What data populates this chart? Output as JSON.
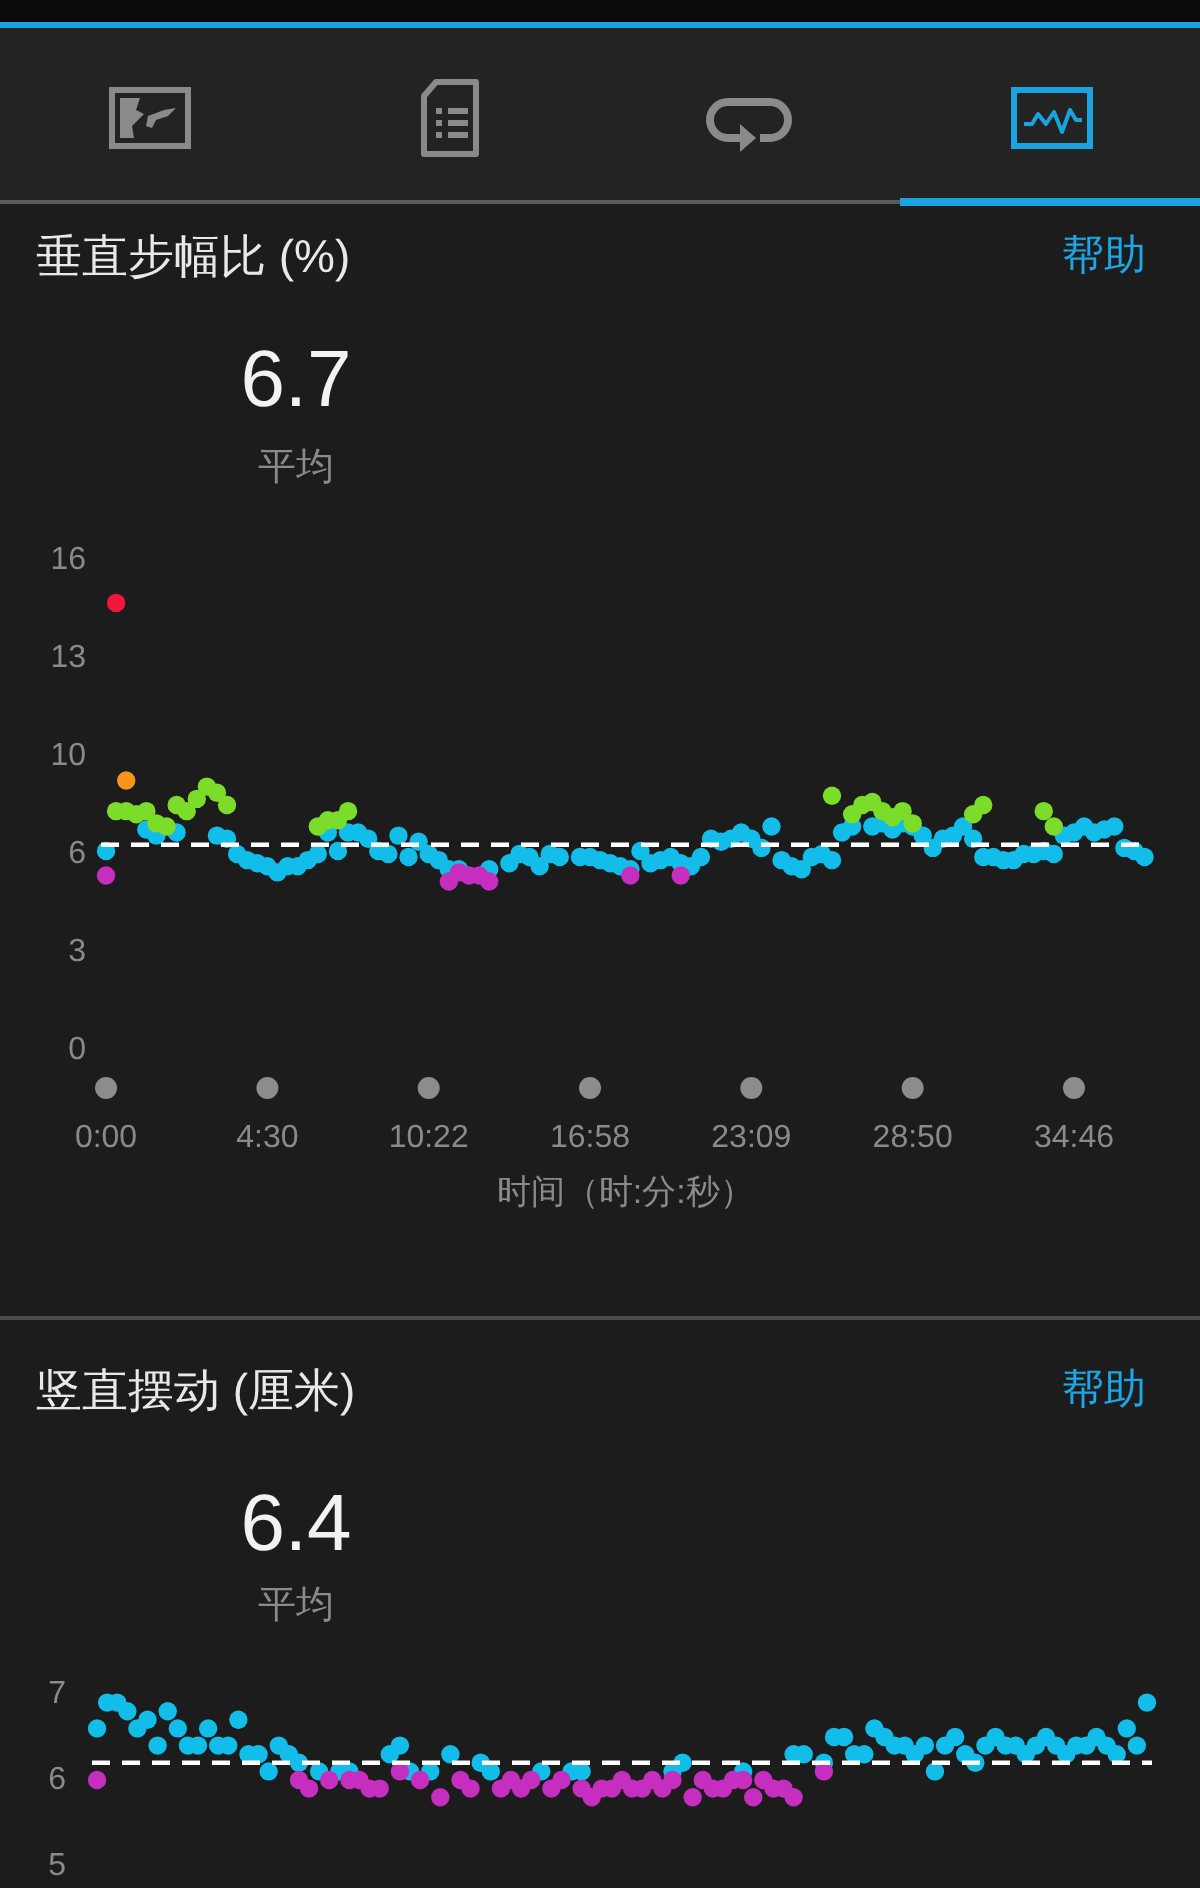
{
  "chart_data": [
    {
      "type": "scatter",
      "title": "垂直步幅比 (%)",
      "subtitle": "6.7",
      "annotations": [
        "平均",
        "帮助"
      ],
      "xlabel": "时间（时:分:秒）",
      "marker": "circle",
      "categories": [
        "0:00",
        null,
        null,
        null,
        null,
        null,
        null,
        null,
        null,
        null,
        null,
        null,
        null,
        null,
        null,
        null,
        "4:30",
        null,
        null,
        null,
        null,
        null,
        null,
        null,
        null,
        null,
        null,
        null,
        null,
        null,
        null,
        null,
        "10:22",
        null,
        null,
        null,
        null,
        null,
        null,
        null,
        null,
        null,
        null,
        null,
        null,
        null,
        null,
        null,
        "16:58",
        null,
        null,
        null,
        null,
        null,
        null,
        null,
        null,
        null,
        null,
        null,
        null,
        null,
        null,
        null,
        "23:09",
        null,
        null,
        null,
        null,
        null,
        null,
        null,
        null,
        null,
        null,
        null,
        null,
        null,
        null,
        null,
        "28:50",
        null,
        null,
        null,
        null,
        null,
        null,
        null,
        null,
        null,
        null,
        null,
        null,
        null,
        null,
        null,
        "34:46",
        null,
        null,
        null,
        null,
        null,
        null,
        null
      ],
      "ylim": [
        0,
        16
      ],
      "yticks": [
        0,
        {
          "value": 3.2,
          "label": "3"
        },
        {
          "value": 6.4,
          "label": "6"
        },
        {
          "value": 9.6,
          "label": "10"
        },
        {
          "value": 12.8,
          "label": "13"
        },
        16
      ],
      "ref_lines": [
        {
          "axis": "y",
          "value": 6.7,
          "color": "#ffffff",
          "line_style": "dashed"
        }
      ],
      "series": [
        {
          "color": "#13bde9",
          "values": [
            6.5,
            null,
            null,
            null,
            7.2,
            7.0,
            null,
            7.1,
            null,
            null,
            null,
            7.0,
            6.9,
            6.4,
            6.2,
            6.1,
            6.0,
            5.8,
            6.0,
            6.0,
            6.2,
            6.4,
            7.1,
            6.5,
            7.1,
            7.1,
            6.9,
            6.5,
            6.4,
            7.0,
            6.3,
            6.8,
            6.4,
            6.2,
            5.9,
            5.9,
            null,
            null,
            5.9,
            null,
            6.1,
            6.4,
            6.3,
            6.0,
            6.4,
            6.3,
            null,
            6.3,
            6.3,
            6.2,
            6.1,
            6.0,
            5.9,
            6.5,
            6.1,
            6.2,
            6.3,
            6.1,
            6.0,
            6.3,
            6.9,
            6.8,
            6.9,
            7.1,
            6.9,
            6.6,
            7.3,
            6.2,
            6.0,
            5.9,
            6.3,
            6.4,
            6.2,
            7.1,
            7.3,
            null,
            7.3,
            7.4,
            7.2,
            7.4,
            7.3,
            7.0,
            6.6,
            6.9,
            7.0,
            7.3,
            6.9,
            6.3,
            6.3,
            6.2,
            6.2,
            6.4,
            6.4,
            6.5,
            6.4,
            7.0,
            7.1,
            7.3,
            7.1,
            7.2,
            7.3,
            6.6,
            6.5,
            6.3
          ]
        },
        {
          "color": "#c62ec0",
          "values": [
            5.7,
            null,
            null,
            null,
            null,
            null,
            null,
            null,
            null,
            null,
            null,
            null,
            null,
            null,
            null,
            null,
            null,
            null,
            null,
            null,
            null,
            null,
            null,
            null,
            null,
            null,
            null,
            null,
            null,
            null,
            null,
            null,
            null,
            null,
            5.5,
            5.8,
            5.7,
            5.7,
            5.5,
            null,
            null,
            null,
            null,
            null,
            null,
            null,
            null,
            null,
            null,
            null,
            null,
            null,
            5.7,
            null,
            null,
            null,
            null,
            5.7,
            null,
            null,
            null,
            null,
            null,
            null,
            null,
            null,
            null,
            null,
            null,
            null,
            null,
            null,
            null,
            null,
            null,
            null,
            null,
            null,
            null,
            null,
            null,
            null,
            null,
            null,
            null,
            null,
            null,
            null,
            null,
            null,
            null,
            null,
            null,
            null,
            null,
            null,
            null,
            null,
            null,
            null,
            null,
            null,
            null,
            null
          ]
        },
        {
          "color": "#7bdc2a",
          "values": [
            null,
            7.8,
            7.8,
            7.7,
            7.8,
            7.4,
            7.3,
            8.0,
            7.8,
            8.2,
            8.6,
            8.4,
            8.0,
            null,
            null,
            null,
            null,
            null,
            null,
            null,
            null,
            7.3,
            7.5,
            7.5,
            7.8,
            null,
            null,
            null,
            null,
            null,
            null,
            null,
            null,
            null,
            null,
            null,
            null,
            null,
            null,
            null,
            null,
            null,
            null,
            null,
            null,
            null,
            null,
            null,
            null,
            null,
            null,
            null,
            null,
            null,
            null,
            null,
            null,
            null,
            null,
            null,
            null,
            null,
            null,
            null,
            null,
            null,
            null,
            null,
            null,
            null,
            null,
            null,
            8.3,
            null,
            7.7,
            8.0,
            8.1,
            7.8,
            7.6,
            7.8,
            7.4,
            null,
            null,
            null,
            null,
            null,
            7.7,
            8.0,
            null,
            null,
            null,
            null,
            null,
            7.8,
            7.3,
            null,
            null,
            null,
            null,
            null,
            null,
            null,
            null,
            null
          ]
        },
        {
          "color": "#f7941d",
          "values": [
            null,
            null,
            8.8,
            null,
            null,
            null,
            null,
            null,
            null,
            null,
            null,
            null,
            null,
            null,
            null,
            null,
            null,
            null,
            null,
            null,
            null,
            null,
            null,
            null,
            null,
            null,
            null,
            null,
            null,
            null,
            null,
            null,
            null,
            null,
            null,
            null,
            null,
            null,
            null,
            null,
            null,
            null,
            null,
            null,
            null,
            null,
            null,
            null,
            null,
            null,
            null,
            null,
            null,
            null,
            null,
            null,
            null,
            null,
            null,
            null,
            null,
            null,
            null,
            null,
            null,
            null,
            null,
            null,
            null,
            null,
            null,
            null,
            null,
            null,
            null,
            null,
            null,
            null,
            null,
            null,
            null,
            null,
            null,
            null,
            null,
            null,
            null,
            null,
            null,
            null,
            null,
            null,
            null,
            null,
            null,
            null,
            null,
            null,
            null,
            null,
            null,
            null,
            null,
            null
          ]
        },
        {
          "color": "#f0163c",
          "values": [
            null,
            14.6,
            null,
            null,
            null,
            null,
            null,
            null,
            null,
            null,
            null,
            null,
            null,
            null,
            null,
            null,
            null,
            null,
            null,
            null,
            null,
            null,
            null,
            null,
            null,
            null,
            null,
            null,
            null,
            null,
            null,
            null,
            null,
            null,
            null,
            null,
            null,
            null,
            null,
            null,
            null,
            null,
            null,
            null,
            null,
            null,
            null,
            null,
            null,
            null,
            null,
            null,
            null,
            null,
            null,
            null,
            null,
            null,
            null,
            null,
            null,
            null,
            null,
            null,
            null,
            null,
            null,
            null,
            null,
            null,
            null,
            null,
            null,
            null,
            null,
            null,
            null,
            null,
            null,
            null,
            null,
            null,
            null,
            null,
            null,
            null,
            null,
            null,
            null,
            null,
            null,
            null,
            null,
            null,
            null,
            null,
            null,
            null,
            null,
            null,
            null,
            null,
            null,
            null
          ]
        }
      ]
    },
    {
      "type": "scatter",
      "title": "竖直摆动 (厘米)",
      "subtitle": "6.4",
      "annotations": [
        "平均",
        "帮助"
      ],
      "marker": "circle",
      "tick_labels": "y",
      "categories": [
        null,
        null,
        null,
        null,
        null,
        null,
        null,
        null,
        null,
        null,
        null,
        null,
        null,
        null,
        null,
        null,
        null,
        null,
        null,
        null,
        null,
        null,
        null,
        null,
        null,
        null,
        null,
        null,
        null,
        null,
        null,
        null,
        null,
        null,
        null,
        null,
        null,
        null,
        null,
        null,
        null,
        null,
        null,
        null,
        null,
        null,
        null,
        null,
        null,
        null,
        null,
        null,
        null,
        null,
        null,
        null,
        null,
        null,
        null,
        null,
        null,
        null,
        null,
        null,
        null,
        null,
        null,
        null,
        null,
        null,
        null,
        null,
        null,
        null,
        null,
        null,
        null,
        null,
        null,
        null,
        null,
        null,
        null,
        null,
        null,
        null,
        null,
        null,
        null,
        null,
        null,
        null,
        null,
        null,
        null,
        null,
        null,
        null,
        null,
        null,
        null,
        null,
        null,
        null,
        null
      ],
      "ylim": [
        5,
        7
      ],
      "yticks": [
        5,
        6,
        7
      ],
      "ref_lines": [
        {
          "axis": "y",
          "value": 6.2,
          "color": "#ffffff",
          "line_style": "dashed"
        }
      ],
      "series": [
        {
          "color": "#13bde9",
          "values": [
            6.6,
            6.9,
            6.9,
            6.8,
            6.6,
            6.7,
            6.4,
            6.8,
            6.6,
            6.4,
            6.4,
            6.6,
            6.4,
            6.4,
            6.7,
            6.3,
            6.3,
            6.1,
            6.4,
            6.3,
            6.2,
            null,
            6.1,
            null,
            6.1,
            6.1,
            null,
            null,
            null,
            6.3,
            6.4,
            6.1,
            null,
            6.1,
            null,
            6.3,
            null,
            null,
            6.2,
            6.1,
            null,
            null,
            null,
            null,
            6.1,
            null,
            null,
            6.1,
            6.1,
            null,
            null,
            null,
            null,
            null,
            null,
            null,
            null,
            6.1,
            6.2,
            null,
            null,
            null,
            null,
            null,
            6.1,
            null,
            null,
            null,
            null,
            6.3,
            6.3,
            null,
            6.2,
            6.5,
            6.5,
            6.3,
            6.3,
            6.6,
            6.5,
            6.4,
            6.4,
            6.3,
            6.4,
            6.1,
            6.4,
            6.5,
            6.3,
            6.2,
            6.4,
            6.5,
            6.4,
            6.4,
            6.3,
            6.4,
            6.5,
            6.4,
            6.3,
            6.4,
            6.4,
            6.5,
            6.4,
            6.3,
            6.6,
            6.4,
            6.9
          ]
        },
        {
          "color": "#c62ec0",
          "values": [
            6.0,
            null,
            null,
            null,
            null,
            null,
            null,
            null,
            null,
            null,
            null,
            null,
            null,
            null,
            null,
            null,
            null,
            null,
            null,
            null,
            6.0,
            5.9,
            null,
            6.0,
            null,
            6.0,
            6.0,
            5.9,
            5.9,
            null,
            6.1,
            null,
            6.0,
            null,
            5.8,
            null,
            6.0,
            5.9,
            null,
            null,
            5.9,
            6.0,
            5.9,
            6.0,
            null,
            5.9,
            6.0,
            null,
            5.9,
            5.8,
            5.9,
            5.9,
            6.0,
            5.9,
            5.9,
            6.0,
            5.9,
            6.0,
            null,
            5.8,
            6.0,
            5.9,
            5.9,
            6.0,
            6.0,
            5.8,
            6.0,
            5.9,
            5.9,
            5.8,
            null,
            null,
            6.1,
            null,
            null,
            null,
            null,
            null,
            null,
            null,
            null,
            null,
            null,
            null,
            null,
            null,
            null,
            null,
            null,
            null,
            null,
            null,
            null,
            null,
            null,
            null,
            null,
            null,
            null,
            null,
            null,
            null,
            null,
            null,
            null
          ]
        }
      ]
    }
  ]
}
